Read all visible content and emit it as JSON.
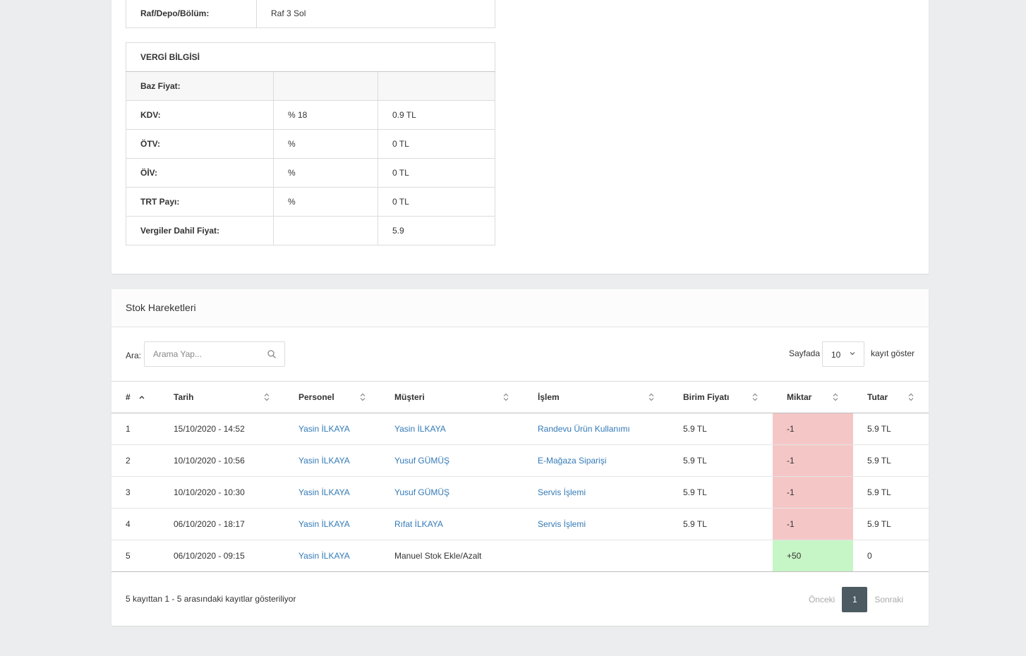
{
  "location": {
    "label": "Raf/Depo/Bölüm:",
    "value": "Raf 3 Sol"
  },
  "tax": {
    "header": "VERGİ BİLGİSİ",
    "rows": [
      {
        "label": "Baz Fiyat:",
        "pct": "",
        "amount": ""
      },
      {
        "label": "KDV:",
        "pct": "% 18",
        "amount": "0.9 TL"
      },
      {
        "label": "ÖTV:",
        "pct": "%",
        "amount": "0 TL"
      },
      {
        "label": "ÖİV:",
        "pct": "%",
        "amount": "0 TL"
      },
      {
        "label": "TRT Payı:",
        "pct": "%",
        "amount": "0 TL"
      },
      {
        "label": "Vergiler Dahil Fiyat:",
        "pct": "",
        "amount": "5.9"
      }
    ]
  },
  "stock": {
    "title": "Stok Hareketleri",
    "search_label": "Ara:",
    "search_placeholder": "Arama Yap...",
    "length_label_before": "Sayfada",
    "length_value": "10",
    "length_label_after": "kayıt göster",
    "columns": [
      "#",
      "Tarih",
      "Personel",
      "Müşteri",
      "İşlem",
      "Birim Fiyatı",
      "Miktar",
      "Tutar"
    ],
    "rows": [
      {
        "no": "1",
        "date": "15/10/2020 - 14:52",
        "staff": "Yasin İLKAYA",
        "customer": "Yasin İLKAYA",
        "operation": "Randevu Ürün Kullanımı",
        "unit_price": "5.9 TL",
        "qty": "-1",
        "total": "5.9 TL"
      },
      {
        "no": "2",
        "date": "10/10/2020 - 10:56",
        "staff": "Yasin İLKAYA",
        "customer": "Yusuf GÜMÜŞ",
        "operation": "E-Mağaza Siparişi",
        "unit_price": "5.9 TL",
        "qty": "-1",
        "total": "5.9 TL"
      },
      {
        "no": "3",
        "date": "10/10/2020 - 10:30",
        "staff": "Yasin İLKAYA",
        "customer": "Yusuf GÜMÜŞ",
        "operation": "Servis İşlemi",
        "unit_price": "5.9 TL",
        "qty": "-1",
        "total": "5.9 TL"
      },
      {
        "no": "4",
        "date": "06/10/2020 - 18:17",
        "staff": "Yasin İLKAYA",
        "customer": "Rıfat İLKAYA",
        "operation": "Servis İşlemi",
        "unit_price": "5.9 TL",
        "qty": "-1",
        "total": "5.9 TL"
      },
      {
        "no": "5",
        "date": "06/10/2020 - 09:15",
        "staff": "Yasin İLKAYA",
        "customer": "Manuel Stok Ekle/Azalt",
        "operation": "",
        "unit_price": "",
        "qty": "+50",
        "total": "0"
      }
    ],
    "info": "5 kayıttan 1 - 5 arasındaki kayıtlar gösteriliyor",
    "pager": {
      "prev": "Önceki",
      "current": "1",
      "next": "Sonraki"
    }
  },
  "colors": {
    "negative": "#f5c6c6",
    "positive": "#c6f5c6",
    "link": "#337ab7",
    "pager_active": "#4c5a62"
  }
}
